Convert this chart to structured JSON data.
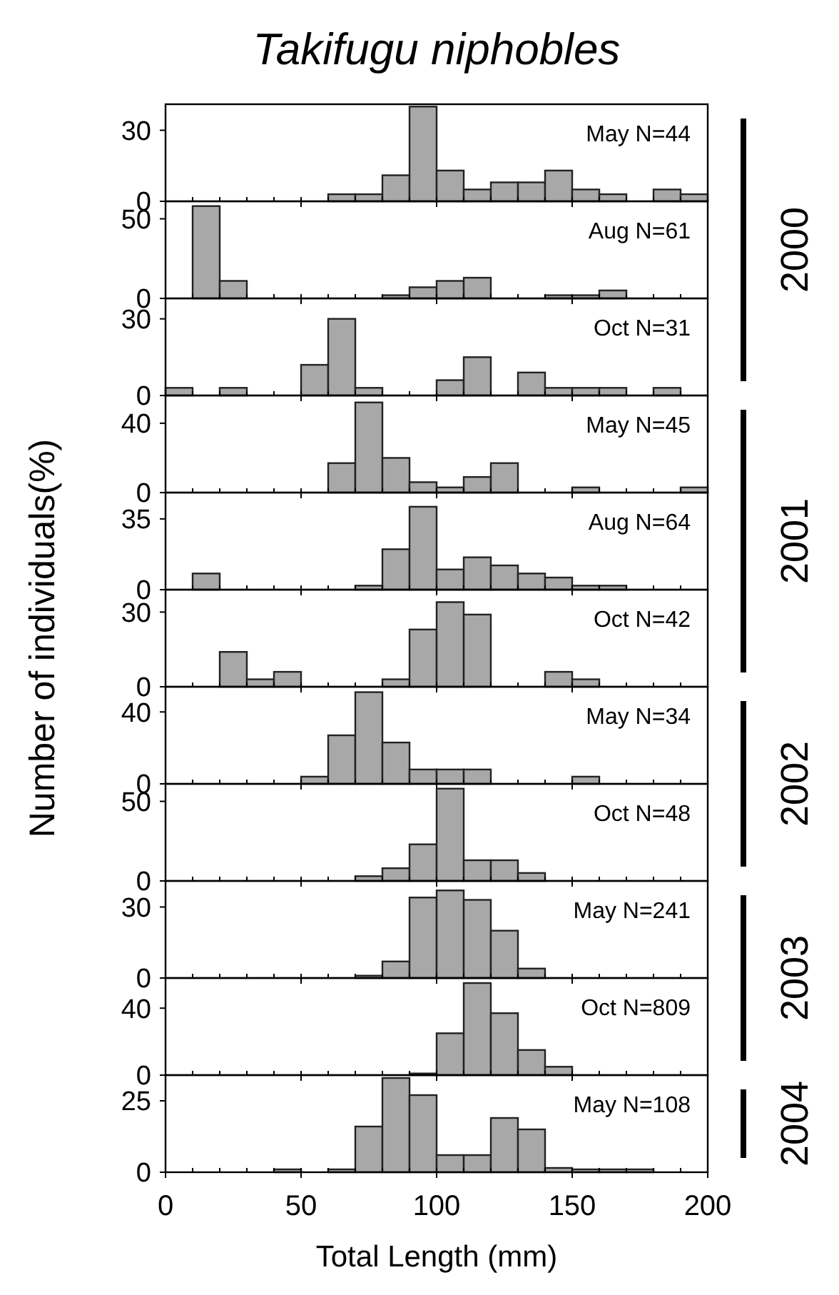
{
  "chart_data": [
    {
      "type": "histogram",
      "title": "Takifugu niphobles",
      "annotations": [
        "May N=44",
        "2000"
      ],
      "bins": [
        0,
        10,
        20,
        30,
        40,
        50,
        60,
        70,
        80,
        90,
        100,
        110,
        120,
        130,
        140,
        150,
        160,
        170,
        180,
        190,
        200
      ],
      "values": [
        0,
        0,
        0,
        0,
        0,
        0,
        3,
        3,
        11,
        40,
        13,
        5,
        8,
        8,
        13,
        5,
        3,
        0,
        5,
        3
      ],
      "color": "#a8a8a8",
      "xlim": [
        0,
        200
      ],
      "xticks": [
        0,
        50,
        100,
        150,
        200
      ],
      "ylim": [
        0,
        41
      ],
      "yticks": [
        0,
        30
      ],
      "tick_labels": "y"
    },
    {
      "type": "histogram",
      "annotations": [
        "Aug N=61"
      ],
      "bins": [
        0,
        10,
        20,
        30,
        40,
        50,
        60,
        70,
        80,
        90,
        100,
        110,
        120,
        130,
        140,
        150,
        160,
        170,
        180,
        190,
        200
      ],
      "values": [
        0,
        58,
        11,
        0,
        0,
        0,
        0,
        0,
        2,
        7,
        11,
        13,
        0,
        0,
        2,
        2,
        5,
        0,
        0,
        0
      ],
      "color": "#a8a8a8",
      "xlim": [
        0,
        200
      ],
      "xticks": [
        0,
        50,
        100,
        150,
        200
      ],
      "ylim": [
        0,
        61
      ],
      "yticks": [
        0,
        50
      ],
      "tick_labels": "y"
    },
    {
      "type": "histogram",
      "annotations": [
        "Oct N=31"
      ],
      "bins": [
        0,
        10,
        20,
        30,
        40,
        50,
        60,
        70,
        80,
        90,
        100,
        110,
        120,
        130,
        140,
        150,
        160,
        170,
        180,
        190,
        200
      ],
      "values": [
        3,
        0,
        3,
        0,
        0,
        12,
        30,
        3,
        0,
        0,
        6,
        15,
        0,
        9,
        3,
        3,
        3,
        0,
        3,
        0
      ],
      "color": "#a8a8a8",
      "xlim": [
        0,
        200
      ],
      "xticks": [
        0,
        50,
        100,
        150,
        200
      ],
      "ylim": [
        0,
        38
      ],
      "yticks": [
        0,
        30
      ],
      "tick_labels": "y"
    },
    {
      "type": "histogram",
      "annotations": [
        "May N=45",
        "2001"
      ],
      "bins": [
        0,
        10,
        20,
        30,
        40,
        50,
        60,
        70,
        80,
        90,
        100,
        110,
        120,
        130,
        140,
        150,
        160,
        170,
        180,
        190,
        200
      ],
      "values": [
        0,
        0,
        0,
        0,
        0,
        0,
        17,
        52,
        20,
        6,
        3,
        9,
        17,
        0,
        0,
        3,
        0,
        0,
        0,
        3
      ],
      "color": "#a8a8a8",
      "xlim": [
        0,
        200
      ],
      "xticks": [
        0,
        50,
        100,
        150,
        200
      ],
      "ylim": [
        0,
        56
      ],
      "yticks": [
        0,
        40
      ],
      "tick_labels": "y"
    },
    {
      "type": "histogram",
      "annotations": [
        "Aug N=64"
      ],
      "bins": [
        0,
        10,
        20,
        30,
        40,
        50,
        60,
        70,
        80,
        90,
        100,
        110,
        120,
        130,
        140,
        150,
        160,
        170,
        180,
        190,
        200
      ],
      "values": [
        0,
        8,
        0,
        0,
        0,
        0,
        0,
        2,
        20,
        41,
        10,
        16,
        12,
        8,
        6,
        2,
        2,
        0,
        0,
        0
      ],
      "color": "#a8a8a8",
      "xlim": [
        0,
        200
      ],
      "xticks": [
        0,
        50,
        100,
        150,
        200
      ],
      "ylim": [
        0,
        48
      ],
      "yticks": [
        0,
        35
      ],
      "tick_labels": "y"
    },
    {
      "type": "histogram",
      "ylabel": "Number of individuals(%)",
      "annotations": [
        "Oct N=42"
      ],
      "bins": [
        0,
        10,
        20,
        30,
        40,
        50,
        60,
        70,
        80,
        90,
        100,
        110,
        120,
        130,
        140,
        150,
        160,
        170,
        180,
        190,
        200
      ],
      "values": [
        0,
        0,
        14,
        3,
        6,
        0,
        0,
        0,
        3,
        23,
        34,
        29,
        0,
        0,
        6,
        3,
        0,
        0,
        0,
        0
      ],
      "color": "#a8a8a8",
      "xlim": [
        0,
        200
      ],
      "xticks": [
        0,
        50,
        100,
        150,
        200
      ],
      "ylim": [
        0,
        39
      ],
      "yticks": [
        0,
        30
      ],
      "tick_labels": "y"
    },
    {
      "type": "histogram",
      "annotations": [
        "May N=34",
        "2002"
      ],
      "bins": [
        0,
        10,
        20,
        30,
        40,
        50,
        60,
        70,
        80,
        90,
        100,
        110,
        120,
        130,
        140,
        150,
        160,
        170,
        180,
        190,
        200
      ],
      "values": [
        0,
        0,
        0,
        0,
        0,
        4,
        27,
        51,
        23,
        8,
        8,
        8,
        0,
        0,
        0,
        4,
        0,
        0,
        0,
        0
      ],
      "color": "#a8a8a8",
      "xlim": [
        0,
        200
      ],
      "xticks": [
        0,
        50,
        100,
        150,
        200
      ],
      "ylim": [
        0,
        54
      ],
      "yticks": [
        0,
        40
      ],
      "tick_labels": "y"
    },
    {
      "type": "histogram",
      "annotations": [
        "Oct N=48"
      ],
      "bins": [
        0,
        10,
        20,
        30,
        40,
        50,
        60,
        70,
        80,
        90,
        100,
        110,
        120,
        130,
        140,
        150,
        160,
        170,
        180,
        190,
        200
      ],
      "values": [
        0,
        0,
        0,
        0,
        0,
        0,
        0,
        3,
        8,
        23,
        58,
        13,
        13,
        5,
        0,
        0,
        0,
        0,
        0,
        0
      ],
      "color": "#a8a8a8",
      "xlim": [
        0,
        200
      ],
      "xticks": [
        0,
        50,
        100,
        150,
        200
      ],
      "ylim": [
        0,
        61
      ],
      "yticks": [
        0,
        50
      ],
      "tick_labels": "y"
    },
    {
      "type": "histogram",
      "annotations": [
        "May N=241",
        "2003"
      ],
      "bins": [
        0,
        10,
        20,
        30,
        40,
        50,
        60,
        70,
        80,
        90,
        100,
        110,
        120,
        130,
        140,
        150,
        160,
        170,
        180,
        190,
        200
      ],
      "values": [
        0,
        0,
        0,
        0,
        0,
        0,
        0,
        1,
        7,
        34,
        37,
        33,
        20,
        4,
        0,
        0,
        0,
        0,
        0,
        0
      ],
      "color": "#a8a8a8",
      "xlim": [
        0,
        200
      ],
      "xticks": [
        0,
        50,
        100,
        150,
        200
      ],
      "ylim": [
        0,
        41
      ],
      "yticks": [
        0,
        30
      ],
      "tick_labels": "y"
    },
    {
      "type": "histogram",
      "annotations": [
        "Oct N=809"
      ],
      "bins": [
        0,
        10,
        20,
        30,
        40,
        50,
        60,
        70,
        80,
        90,
        100,
        110,
        120,
        130,
        140,
        150,
        160,
        170,
        180,
        190,
        200
      ],
      "values": [
        0,
        0,
        0,
        0,
        0,
        0,
        0,
        0,
        0,
        1,
        25,
        55,
        37,
        15,
        5,
        0,
        0,
        0,
        0,
        0
      ],
      "color": "#a8a8a8",
      "xlim": [
        0,
        200
      ],
      "xticks": [
        0,
        50,
        100,
        150,
        200
      ],
      "ylim": [
        0,
        58
      ],
      "yticks": [
        0,
        40
      ],
      "tick_labels": "y"
    },
    {
      "type": "histogram",
      "xlabel": "Total Length (mm)",
      "annotations": [
        "May N=108",
        "2004"
      ],
      "bins": [
        0,
        10,
        20,
        30,
        40,
        50,
        60,
        70,
        80,
        90,
        100,
        110,
        120,
        130,
        140,
        150,
        160,
        170,
        180,
        190,
        200
      ],
      "values": [
        0,
        0,
        0,
        0,
        1,
        0,
        1,
        16,
        33,
        27,
        6,
        6,
        19,
        15,
        1.5,
        1,
        1,
        1,
        0,
        0
      ],
      "color": "#a8a8a8",
      "xlim": [
        0,
        200
      ],
      "xticks": [
        0,
        50,
        100,
        150,
        200
      ],
      "ylim": [
        0,
        34
      ],
      "yticks": [
        0,
        25
      ]
    }
  ]
}
